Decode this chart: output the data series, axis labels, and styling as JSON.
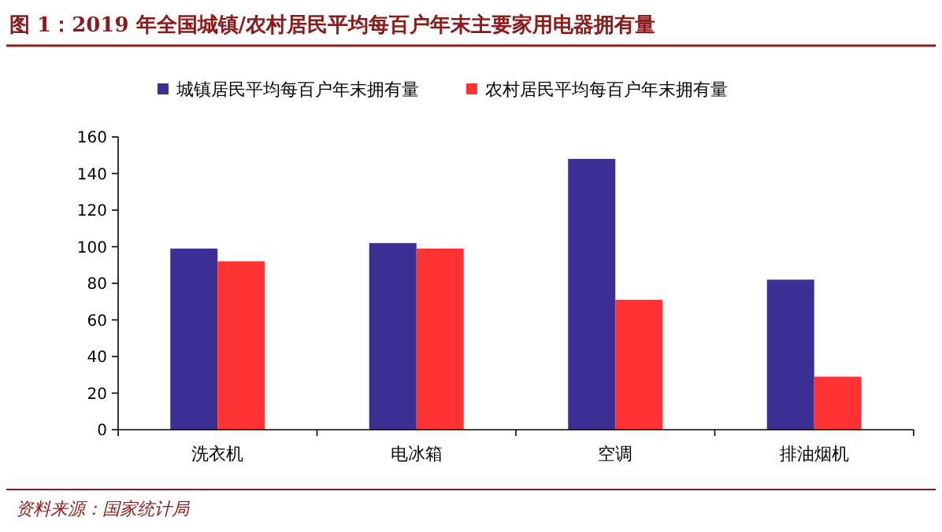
{
  "chart_data": {
    "type": "bar",
    "title": "图 1：2019 年全国城镇/农村居民平均每百户年末主要家用电器拥有量",
    "categories": [
      "洗衣机",
      "电冰箱",
      "空调",
      "排油烟机"
    ],
    "series": [
      {
        "name": "城镇居民平均每百户年末拥有量",
        "color": "#3b3194",
        "values": [
          99,
          102,
          148,
          82
        ]
      },
      {
        "name": "农村居民平均每百户年末拥有量",
        "color": "#ff3333",
        "values": [
          92,
          99,
          71,
          29
        ]
      }
    ],
    "ylim": [
      0,
      160
    ],
    "yticks": [
      0,
      20,
      40,
      60,
      80,
      100,
      120,
      140,
      160
    ],
    "grid": false,
    "legend": "top",
    "annotations": [
      "资料来源：国家统计局"
    ]
  }
}
